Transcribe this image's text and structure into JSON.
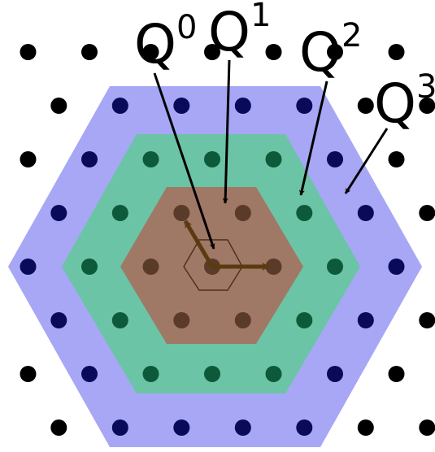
{
  "labels": {
    "q0": {
      "base": "Q",
      "sup": "0"
    },
    "q1": {
      "base": "Q",
      "sup": "1"
    },
    "q2": {
      "base": "Q",
      "sup": "2"
    },
    "q3": {
      "base": "Q",
      "sup": "3"
    }
  },
  "colors": {
    "q3_region": "#a7a7f6",
    "q2_region": "#6bc4a5",
    "q1_region": "#a07866",
    "q3_points": "#0a0a5a",
    "q2_points": "#0d5a3a",
    "q1_points": "#5a3a28",
    "outer_points": "#000000",
    "basis_vectors": "#5a3a10",
    "arrows": "#000000"
  }
}
